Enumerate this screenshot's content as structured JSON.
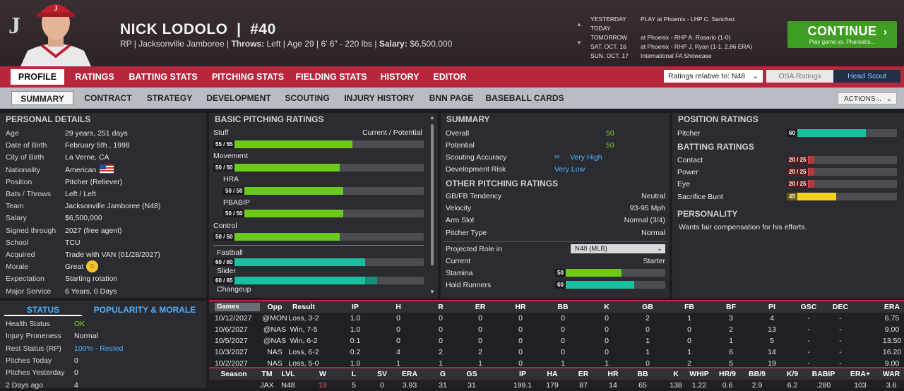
{
  "header": {
    "name": "NICK LODOLO",
    "number": "#40",
    "info_prefix": "RP | Jacksonville Jamboree",
    "throws_label": "Throws:",
    "throws": "Left",
    "age": "Age 29",
    "height_weight": "6' 6\" - 220 lbs",
    "salary_label": "Salary:",
    "salary": "$6,500,000"
  },
  "schedule": [
    {
      "day": "YESTERDAY",
      "event": "PLAY at Phoenix - LHP C. Sanchez"
    },
    {
      "day": "TODAY",
      "event": ""
    },
    {
      "day": "TOMORROW",
      "event": "at Phoenix - RHP A. Rosario (1-0)"
    },
    {
      "day": "SAT. OCT. 16",
      "event": "at Phoenix - RHP J. Ryan (1-1, 2.86 ERA)"
    },
    {
      "day": "SUN. OCT. 17",
      "event": "International FA Showcase"
    }
  ],
  "continue": {
    "label": "CONTINUE",
    "sub": "Play game vs. Pharoahs..."
  },
  "nav1": [
    "PROFILE",
    "RATINGS",
    "BATTING STATS",
    "PITCHING STATS",
    "FIELDING STATS",
    "HISTORY",
    "EDITOR"
  ],
  "ratings_select": "Ratings relative to: N48",
  "osa_label": "OSA Ratings",
  "head_scout_label": "Head Scout",
  "nav2": [
    "SUMMARY",
    "CONTRACT",
    "STRATEGY",
    "DEVELOPMENT",
    "SCOUTING",
    "INJURY HISTORY",
    "BNN PAGE",
    "BASEBALL CARDS"
  ],
  "actions_label": "ACTIONS...",
  "personal": {
    "title": "PERSONAL DETAILS",
    "rows": [
      [
        "Age",
        "29 years, 251 days"
      ],
      [
        "Date of Birth",
        "February 5th , 1998"
      ],
      [
        "City of Birth",
        "La Verne, CA"
      ],
      [
        "Nationality",
        "American"
      ],
      [
        "Position",
        "Pitcher (Reliever)"
      ],
      [
        "Bats / Throws",
        "Left / Left"
      ],
      [
        "Team",
        "Jacksonville Jamboree (N48)"
      ],
      [
        "Salary",
        "$6,500,000"
      ],
      [
        "Signed through",
        "2027 (free agent)"
      ],
      [
        "School",
        "TCU"
      ],
      [
        "Acquired",
        "Trade with VAN (01/28/2027)"
      ],
      [
        "Morale",
        "Great"
      ],
      [
        "Expectation",
        "Starting rotation"
      ],
      [
        "Major Service",
        "6 Years, 0 Days"
      ]
    ]
  },
  "status_tabs": {
    "status": "STATUS",
    "popularity": "POPULARITY & MORALE"
  },
  "status": [
    [
      "Health Status",
      "OK"
    ],
    [
      "Injury Proneness",
      "Normal"
    ],
    [
      "Rest Status (RP)",
      "100% - Rested"
    ],
    [
      "Pitches Today",
      "0"
    ],
    [
      "Pitches Yesterday",
      "0"
    ],
    [
      "2 Days ago",
      "4"
    ]
  ],
  "basic": {
    "title": "BASIC PITCHING RATINGS",
    "col": "Current / Potential",
    "stuff": "Stuff",
    "stuff_v": "55 / 55",
    "movement": "Movement",
    "movement_v": "50 / 50",
    "hra": "HRA",
    "hra_v": "50 / 50",
    "pbabip": "PBABIP",
    "pbabip_v": "50 / 50",
    "control": "Control",
    "control_v": "50 / 50",
    "fastball": "Fastball",
    "fastball_v": "60 / 60",
    "slider": "Slider",
    "slider_v": "60 / 65",
    "changeup": "Changeup",
    "levels": {
      "stuff": 0.55,
      "movement": 0.5,
      "hra": 0.5,
      "pbabip": 0.5,
      "control": 0.5,
      "fastball": 0.6,
      "slider": 0.6,
      "slider_pot": 0.65
    }
  },
  "summary": {
    "title": "SUMMARY",
    "overall_l": "Overall",
    "overall": "50",
    "potential_l": "Potential",
    "potential": "50",
    "accuracy_l": "Scouting Accuracy",
    "accuracy": "Very High",
    "risk_l": "Development Risk",
    "risk": "Very Low"
  },
  "other": {
    "title": "OTHER PITCHING RATINGS",
    "rows": [
      [
        "GB/FB Tendency",
        "Neutral"
      ],
      [
        "Velocity",
        "93-95 Mph"
      ],
      [
        "Arm Slot",
        "Normal (3/4)"
      ],
      [
        "Pitcher Type",
        "Normal"
      ]
    ],
    "role_l": "Projected Role in",
    "role_sel": "N48 (MLB)",
    "current_l": "Current",
    "current": "Starter",
    "stamina_l": "Stamina",
    "stamina": "50",
    "stamina_level": 0.5,
    "hold_l": "Hold Runners",
    "hold": "60",
    "hold_level": 0.6
  },
  "position": {
    "title": "POSITION RATINGS",
    "pitcher_l": "Pitcher",
    "pitcher": "60",
    "pitcher_level": 0.6
  },
  "batting": {
    "title": "BATTING RATINGS",
    "rows": [
      {
        "l": "Contact",
        "v": "20 / 25",
        "lv": 0.2,
        "pv": 0.25
      },
      {
        "l": "Power",
        "v": "20 / 25",
        "lv": 0.2,
        "pv": 0.25
      },
      {
        "l": "Eye",
        "v": "20 / 25",
        "lv": 0.2,
        "pv": 0.25
      },
      {
        "l": "Sacrifice Bunt",
        "v": "45",
        "lv": 0.45,
        "pv": 0.45
      }
    ]
  },
  "personality": {
    "title": "PERSONALITY",
    "text": "Wants fair compensation for his efforts."
  },
  "games": {
    "select": "Games",
    "cols": [
      "Opp",
      "Result",
      "IP",
      "H",
      "R",
      "ER",
      "HR",
      "BB",
      "K",
      "GB",
      "FB",
      "BF",
      "PI",
      "GSC",
      "DEC",
      "ERA"
    ],
    "rows": [
      [
        "10/12/2027",
        "@MON",
        "Loss, 3-2",
        "1.0",
        "0",
        "0",
        "0",
        "0",
        "0",
        "0",
        "2",
        "1",
        "3",
        "4",
        "-",
        "-",
        "6.75"
      ],
      [
        "10/6/2027",
        "@NAS",
        "Win, 7-5",
        "1.0",
        "0",
        "0",
        "0",
        "0",
        "0",
        "0",
        "0",
        "0",
        "2",
        "13",
        "-",
        "-",
        "9.00"
      ],
      [
        "10/5/2027",
        "@NAS",
        "Win, 6-2",
        "0.1",
        "0",
        "0",
        "0",
        "0",
        "0",
        "0",
        "1",
        "0",
        "1",
        "5",
        "-",
        "-",
        "13.50"
      ],
      [
        "10/3/2027",
        "NAS",
        "Loss, 6-2",
        "0.2",
        "4",
        "2",
        "2",
        "0",
        "0",
        "0",
        "1",
        "1",
        "6",
        "14",
        "-",
        "-",
        "16.20"
      ],
      [
        "10/2/2027",
        "NAS",
        "Loss, 5-0",
        "1.0",
        "1",
        "1",
        "1",
        "0",
        "1",
        "1",
        "0",
        "2",
        "5",
        "19",
        "-",
        "-",
        "9.00"
      ]
    ]
  },
  "season": {
    "cols": [
      "Season",
      "TM",
      "LVL",
      "W",
      "L",
      "SV",
      "ERA",
      "G",
      "GS",
      "IP",
      "HA",
      "ER",
      "HR",
      "BB",
      "K",
      "WHIP",
      "HR/9",
      "BB/9",
      "K/9",
      "BABIP",
      "ERA+",
      "WAR"
    ],
    "row": [
      "",
      "JAX",
      "N48",
      "19",
      "5",
      "0",
      "3.93",
      "31",
      "31",
      "199.1",
      "179",
      "87",
      "14",
      "65",
      "138",
      "1.22",
      "0.6",
      "2.9",
      "6.2",
      ".280",
      "103",
      "3.6"
    ]
  }
}
